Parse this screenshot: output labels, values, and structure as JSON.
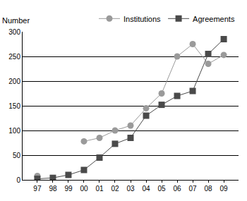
{
  "chart_data": {
    "type": "line",
    "ylabel": "Number",
    "categories": [
      "97",
      "98",
      "99",
      "00",
      "01",
      "02",
      "03",
      "04",
      "05",
      "06",
      "07",
      "08",
      "09"
    ],
    "series": [
      {
        "name": "Institutions",
        "color": "#9a9a9a",
        "marker": "circle",
        "values": [
          8,
          null,
          null,
          78,
          85,
          100,
          110,
          145,
          175,
          250,
          275,
          235,
          253
        ]
      },
      {
        "name": "Agreements",
        "color": "#4a4a4a",
        "marker": "square",
        "values": [
          2,
          4,
          10,
          20,
          45,
          73,
          85,
          130,
          152,
          170,
          180,
          255,
          285
        ]
      }
    ],
    "ylim": [
      0,
      300
    ],
    "yticks": [
      0,
      50,
      100,
      150,
      200,
      250,
      300
    ],
    "grid": true,
    "legend": "top right"
  }
}
